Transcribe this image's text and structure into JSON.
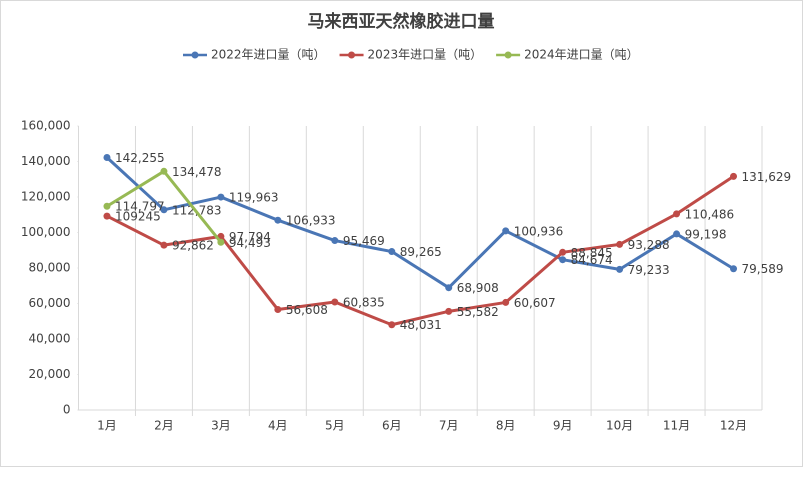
{
  "chart_data": {
    "type": "line",
    "title": "马来西亚天然橡胶进口量",
    "categories": [
      "1月",
      "2月",
      "3月",
      "4月",
      "5月",
      "6月",
      "7月",
      "8月",
      "9月",
      "10月",
      "11月",
      "12月"
    ],
    "series": [
      {
        "name": "2022年进口量（吨）",
        "color": "#4a76b5",
        "values": [
          142255,
          112783,
          119963,
          106933,
          95469,
          89265,
          68908,
          100936,
          84674,
          79233,
          99198,
          79589
        ],
        "value_labels": [
          "142,255",
          "112,783",
          "119,963",
          "106,933",
          "95,469",
          "89,265",
          "68,908",
          "100,936",
          "84,674",
          "79,233",
          "99,198",
          "79,589"
        ]
      },
      {
        "name": "2023年进口量（吨）",
        "color": "#bf4b47",
        "values": [
          109245,
          92862,
          97794,
          56608,
          60835,
          48031,
          55582,
          60607,
          88845,
          93288,
          110486,
          131629
        ],
        "value_labels": [
          "109245",
          "92,862",
          "97,794",
          "56,608",
          "60,835",
          "48,031",
          "55,582",
          "60,607",
          "88,845",
          "93,288",
          "110,486",
          "131,629"
        ]
      },
      {
        "name": "2024年进口量（吨）",
        "color": "#97b954",
        "values": [
          114797,
          134478,
          94493,
          null,
          null,
          null,
          null,
          null,
          null,
          null,
          null,
          null
        ],
        "value_labels": [
          "114,797",
          "134,478",
          "94,493",
          null,
          null,
          null,
          null,
          null,
          null,
          null,
          null,
          null
        ]
      }
    ],
    "ylim": [
      0,
      160000
    ],
    "yticks": [
      0,
      {
        "value": 20000,
        "label": "20,000"
      },
      {
        "value": 40000,
        "label": "40,000"
      },
      {
        "value": 60000,
        "label": "60,000"
      },
      {
        "value": 80000,
        "label": "80,000"
      },
      {
        "value": 100000,
        "label": "100,000"
      },
      {
        "value": 120000,
        "label": "120,000"
      },
      {
        "value": 140000,
        "label": "140,000"
      },
      {
        "value": 160000,
        "label": "160,000"
      }
    ],
    "grid": "vertical",
    "legend": "top"
  }
}
